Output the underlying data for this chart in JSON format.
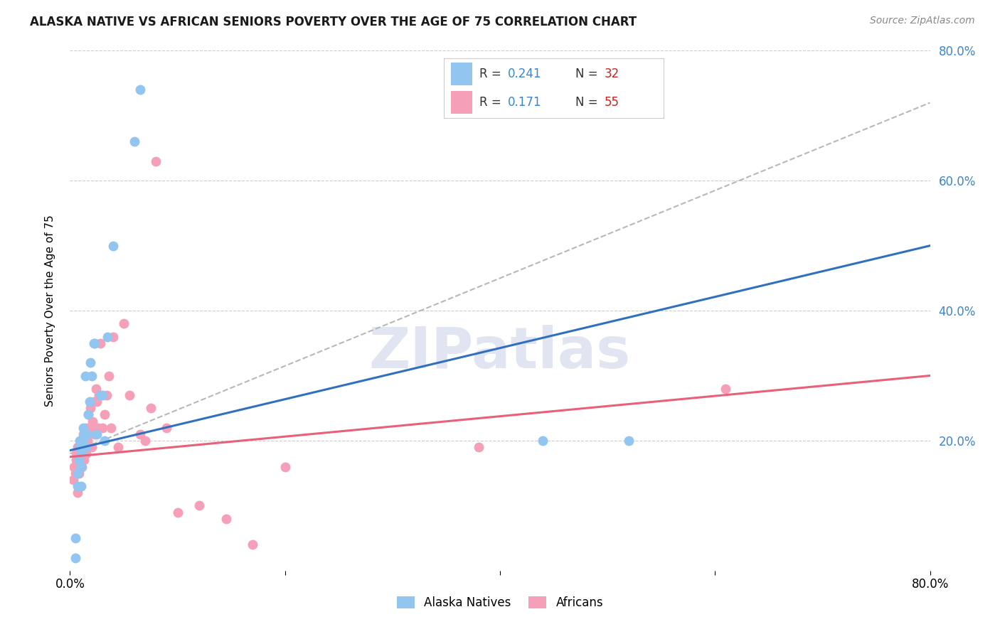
{
  "title": "ALASKA NATIVE VS AFRICAN SENIORS POVERTY OVER THE AGE OF 75 CORRELATION CHART",
  "source": "Source: ZipAtlas.com",
  "ylabel": "Seniors Poverty Over the Age of 75",
  "xlim": [
    0,
    0.8
  ],
  "ylim": [
    0,
    0.8
  ],
  "xtick_labels": [
    "0.0%",
    "",
    "",
    "",
    "80.0%"
  ],
  "xtick_vals": [
    0.0,
    0.2,
    0.4,
    0.6,
    0.8
  ],
  "ytick_vals": [
    0.2,
    0.4,
    0.6,
    0.8
  ],
  "ytick_labels_right": [
    "20.0%",
    "40.0%",
    "60.0%",
    "80.0%"
  ],
  "alaska_color": "#92c5f0",
  "african_color": "#f5a0b8",
  "alaska_line_color": "#3070bf",
  "african_line_color": "#e8607a",
  "dashed_line_color": "#b8b8b8",
  "background_color": "#ffffff",
  "grid_color": "#cccccc",
  "watermark_color": "#ccd5e8",
  "alaska_x": [
    0.005,
    0.005,
    0.007,
    0.007,
    0.008,
    0.009,
    0.009,
    0.01,
    0.01,
    0.01,
    0.012,
    0.012,
    0.013,
    0.014,
    0.015,
    0.016,
    0.017,
    0.018,
    0.019,
    0.02,
    0.022,
    0.023,
    0.025,
    0.028,
    0.03,
    0.032,
    0.035,
    0.04,
    0.06,
    0.065,
    0.44,
    0.52
  ],
  "alaska_y": [
    0.02,
    0.05,
    0.13,
    0.15,
    0.17,
    0.19,
    0.2,
    0.13,
    0.16,
    0.18,
    0.2,
    0.22,
    0.21,
    0.3,
    0.19,
    0.21,
    0.24,
    0.26,
    0.32,
    0.3,
    0.35,
    0.35,
    0.21,
    0.27,
    0.27,
    0.2,
    0.36,
    0.5,
    0.66,
    0.74,
    0.2,
    0.2
  ],
  "african_x": [
    0.003,
    0.004,
    0.005,
    0.006,
    0.006,
    0.007,
    0.007,
    0.008,
    0.008,
    0.009,
    0.009,
    0.01,
    0.01,
    0.011,
    0.012,
    0.012,
    0.013,
    0.013,
    0.014,
    0.015,
    0.015,
    0.016,
    0.017,
    0.018,
    0.019,
    0.02,
    0.021,
    0.022,
    0.023,
    0.024,
    0.025,
    0.026,
    0.027,
    0.028,
    0.03,
    0.032,
    0.034,
    0.036,
    0.038,
    0.04,
    0.045,
    0.05,
    0.055,
    0.065,
    0.07,
    0.075,
    0.08,
    0.09,
    0.1,
    0.12,
    0.145,
    0.17,
    0.2,
    0.38,
    0.61
  ],
  "african_y": [
    0.14,
    0.16,
    0.15,
    0.17,
    0.18,
    0.12,
    0.19,
    0.15,
    0.18,
    0.16,
    0.19,
    0.17,
    0.2,
    0.16,
    0.18,
    0.21,
    0.17,
    0.19,
    0.21,
    0.18,
    0.22,
    0.2,
    0.24,
    0.22,
    0.25,
    0.19,
    0.23,
    0.26,
    0.21,
    0.28,
    0.26,
    0.22,
    0.27,
    0.35,
    0.22,
    0.24,
    0.27,
    0.3,
    0.22,
    0.36,
    0.19,
    0.38,
    0.27,
    0.21,
    0.2,
    0.25,
    0.63,
    0.22,
    0.09,
    0.1,
    0.08,
    0.04,
    0.16,
    0.19,
    0.28
  ]
}
